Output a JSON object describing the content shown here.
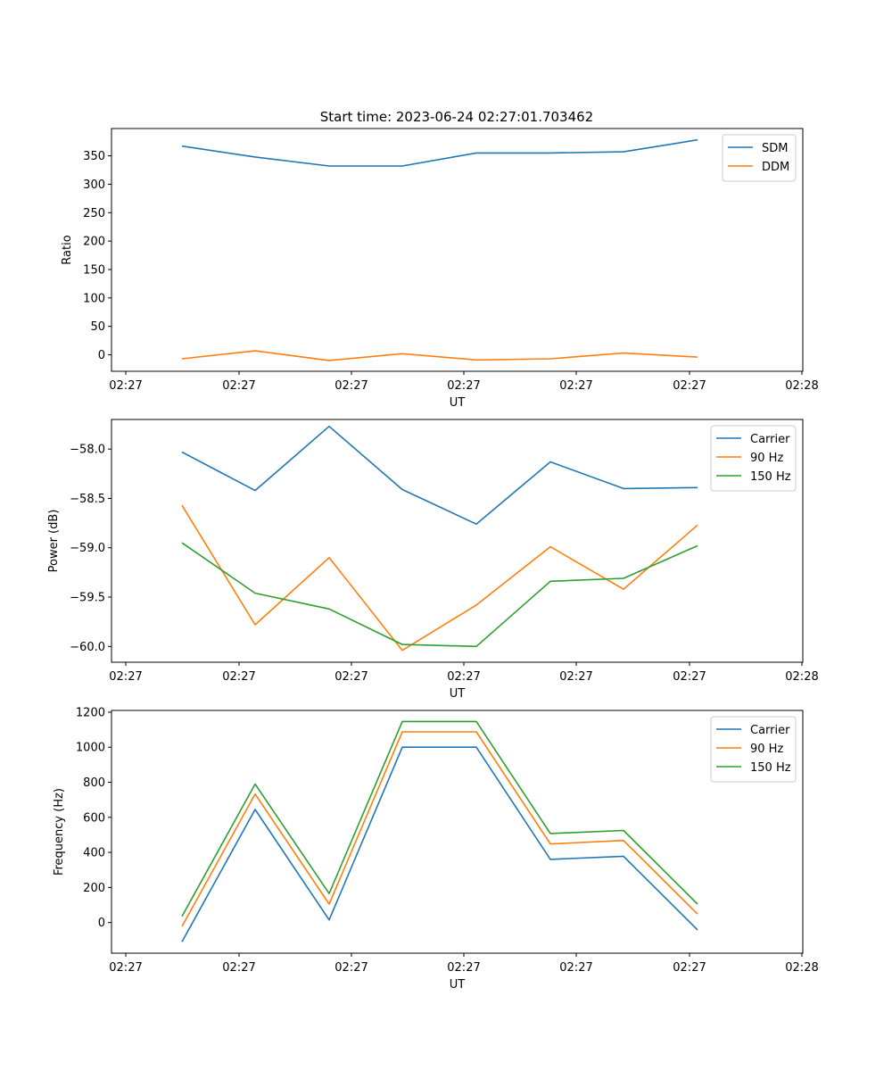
{
  "title": "Start time: 2023-06-24 02:27:01.703462",
  "colors": {
    "blue": "#1f77b4",
    "orange": "#ff7f0e",
    "green": "#2ca02c"
  },
  "chart_data": [
    {
      "type": "line",
      "xlabel": "UT",
      "ylabel": "Ratio",
      "x_tick_labels": [
        "02:27",
        "02:27",
        "02:27",
        "02:27",
        "02:27",
        "02:27",
        "02:28"
      ],
      "y_ticks": [
        0,
        50,
        100,
        150,
        200,
        250,
        300,
        350
      ],
      "y_tick_labels": [
        "0",
        "50",
        "100",
        "150",
        "200",
        "250",
        "300",
        "350"
      ],
      "ylim": [
        -29,
        398
      ],
      "grid": false,
      "legend": "top-right",
      "series": [
        {
          "name": "SDM",
          "color": "blue",
          "values": [
            367,
            348,
            332,
            332,
            355,
            355,
            357,
            378
          ]
        },
        {
          "name": "DDM",
          "color": "orange",
          "values": [
            -7,
            7,
            -10,
            2,
            -9,
            -7,
            3,
            -4
          ]
        }
      ]
    },
    {
      "type": "line",
      "xlabel": "UT",
      "ylabel": "Power (dB)",
      "x_tick_labels": [
        "02:27",
        "02:27",
        "02:27",
        "02:27",
        "02:27",
        "02:27",
        "02:28"
      ],
      "y_ticks": [
        -60.0,
        -59.5,
        -59.0,
        -58.5,
        -58.0
      ],
      "y_tick_labels": [
        "−60.0",
        "−59.5",
        "−59.0",
        "−58.5",
        "−58.0"
      ],
      "ylim": [
        -60.16,
        -57.7
      ],
      "grid": false,
      "legend": "top-right",
      "series": [
        {
          "name": "Carrier",
          "color": "blue",
          "values": [
            -58.03,
            -58.42,
            -57.77,
            -58.41,
            -58.76,
            -58.13,
            -58.4,
            -58.39
          ]
        },
        {
          "name": "90 Hz",
          "color": "orange",
          "values": [
            -58.57,
            -59.78,
            -59.1,
            -60.04,
            -59.58,
            -58.99,
            -59.42,
            -58.77
          ]
        },
        {
          "name": "150 Hz",
          "color": "green",
          "values": [
            -58.95,
            -59.46,
            -59.62,
            -59.98,
            -60.0,
            -59.34,
            -59.31,
            -58.98
          ]
        }
      ]
    },
    {
      "type": "line",
      "xlabel": "UT",
      "ylabel": "Frequency (Hz)",
      "x_tick_labels": [
        "02:27",
        "02:27",
        "02:27",
        "02:27",
        "02:27",
        "02:27",
        "02:28"
      ],
      "y_ticks": [
        0,
        200,
        400,
        600,
        800,
        1000,
        1200
      ],
      "y_tick_labels": [
        "0",
        "200",
        "400",
        "600",
        "800",
        "1000",
        "1200"
      ],
      "ylim": [
        -175,
        1210
      ],
      "grid": false,
      "legend": "top-right",
      "series": [
        {
          "name": "Carrier",
          "color": "blue",
          "values": [
            -110,
            645,
            15,
            1000,
            1000,
            360,
            378,
            -42
          ]
        },
        {
          "name": "90 Hz",
          "color": "orange",
          "values": [
            -22,
            733,
            105,
            1088,
            1088,
            448,
            468,
            48
          ]
        },
        {
          "name": "150 Hz",
          "color": "green",
          "values": [
            35,
            790,
            165,
            1147,
            1147,
            508,
            525,
            105
          ]
        }
      ]
    }
  ]
}
